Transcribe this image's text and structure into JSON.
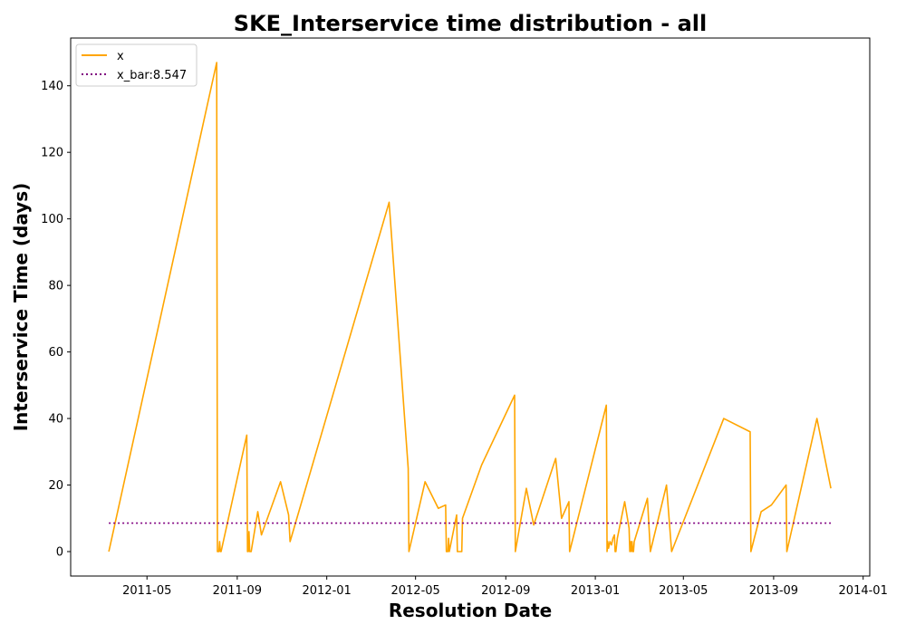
{
  "chart_data": {
    "type": "line",
    "title": "SKE_Interservice time distribution - all",
    "xlabel": "Resolution Date",
    "ylabel": "Interservice Time (days)",
    "xlim": [
      "2011-01-17",
      "2014-01-10"
    ],
    "ylim": [
      -7.35,
      154.35
    ],
    "x_tick_labels": [
      "2011-05",
      "2011-09",
      "2012-01",
      "2012-05",
      "2012-09",
      "2013-01",
      "2013-05",
      "2013-09",
      "2014-01"
    ],
    "y_tick_labels": [
      "0",
      "20",
      "40",
      "60",
      "80",
      "100",
      "120",
      "140"
    ],
    "grid": false,
    "legend_position": "upper-left",
    "series": [
      {
        "name": "x",
        "color": "#FFA500",
        "style": "solid",
        "x": [
          "2011-03-10",
          "2011-08-04",
          "2011-08-05",
          "2011-08-06",
          "2011-08-07",
          "2011-08-08",
          "2011-08-09",
          "2011-08-10",
          "2011-09-14",
          "2011-09-15",
          "2011-09-16",
          "2011-09-17",
          "2011-09-18",
          "2011-09-20",
          "2011-09-29",
          "2011-10-04",
          "2011-10-30",
          "2011-11-10",
          "2011-11-12",
          "2012-03-26",
          "2012-04-21",
          "2012-04-22",
          "2012-05-14",
          "2012-06-01",
          "2012-06-11",
          "2012-06-12",
          "2012-06-14",
          "2012-06-15",
          "2012-06-16",
          "2012-06-26",
          "2012-06-27",
          "2012-07-03",
          "2012-07-04",
          "2012-07-30",
          "2012-09-13",
          "2012-09-14",
          "2012-09-29",
          "2012-10-09",
          "2012-11-08",
          "2012-11-16",
          "2012-11-26",
          "2012-11-27",
          "2013-01-16",
          "2013-01-17",
          "2013-01-18",
          "2013-01-19",
          "2013-01-21",
          "2013-01-23",
          "2013-01-25",
          "2013-01-27",
          "2013-01-28",
          "2013-01-29",
          "2013-01-31",
          "2013-02-10",
          "2013-02-16",
          "2013-02-17",
          "2013-02-18",
          "2013-02-19",
          "2013-02-20",
          "2013-02-21",
          "2013-02-22",
          "2013-02-23",
          "2013-03-13",
          "2013-03-17",
          "2013-04-08",
          "2013-04-15",
          "2013-06-25",
          "2013-07-31",
          "2013-08-01",
          "2013-08-15",
          "2013-08-29",
          "2013-09-18",
          "2013-09-19",
          "2013-10-30",
          "2013-11-18"
        ],
        "values": [
          0,
          147,
          0,
          0,
          0,
          3,
          0,
          0,
          35,
          0,
          0,
          6,
          0,
          0,
          12,
          5,
          21,
          11,
          3,
          105,
          25,
          0,
          21,
          13,
          14,
          0,
          0,
          4,
          0,
          11,
          0,
          0,
          10,
          26,
          47,
          0,
          19,
          8,
          28,
          10,
          15,
          0,
          44,
          0,
          3,
          1,
          3,
          2,
          4,
          5,
          0,
          0,
          4,
          15,
          7,
          0,
          3,
          0,
          3,
          0,
          0,
          3,
          16,
          0,
          20,
          0,
          40,
          36,
          0,
          12,
          14,
          20,
          0,
          40,
          19
        ]
      },
      {
        "name": "x_bar:8.547",
        "color": "#800080",
        "style": "dotted",
        "x": [
          "2011-03-10",
          "2013-11-18"
        ],
        "values": [
          8.547,
          8.547
        ]
      }
    ]
  }
}
